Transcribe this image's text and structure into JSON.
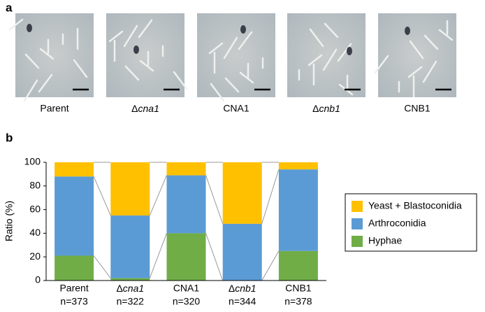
{
  "panel_a": {
    "label": "a",
    "images": [
      "Parent",
      "Δcna1",
      "CNA1",
      "Δcnb1",
      "CNB1"
    ]
  },
  "chart_data": {
    "type": "bar",
    "stacked": true,
    "panel_label": "b",
    "y_label": "Ratio (%)",
    "categories": [
      "Parent",
      "Δcna1",
      "CNA1",
      "Δcnb1",
      "CNB1"
    ],
    "category_notes": [
      "n=373",
      "n=322",
      "n=320",
      "n=344",
      "n=378"
    ],
    "series": [
      {
        "name": "Hyphae",
        "color": "#70ad47",
        "values": [
          21,
          2,
          40,
          0,
          25
        ]
      },
      {
        "name": "Arthroconidia",
        "color": "#5b9bd5",
        "values": [
          67,
          53,
          49,
          48,
          69
        ]
      },
      {
        "name": "Yeast + Blastoconidia",
        "color": "#ffc000",
        "values": [
          12,
          45,
          11,
          52,
          6
        ]
      }
    ],
    "ylim": [
      0,
      100
    ],
    "yticks": [
      0,
      20,
      40,
      60,
      80,
      100
    ],
    "legend": "right",
    "connectors": true
  }
}
